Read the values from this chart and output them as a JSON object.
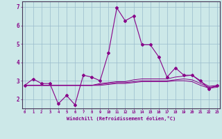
{
  "xlabel": "Windchill (Refroidissement éolien,°C)",
  "background_color": "#cce8e8",
  "grid_color": "#99bbcc",
  "line_color": "#880088",
  "x_hours": [
    0,
    1,
    2,
    3,
    4,
    5,
    6,
    7,
    8,
    9,
    10,
    11,
    12,
    13,
    14,
    15,
    16,
    17,
    18,
    19,
    20,
    21,
    22,
    23
  ],
  "line1_y": [
    2.75,
    3.1,
    2.85,
    2.85,
    1.75,
    2.2,
    1.7,
    3.3,
    3.2,
    3.0,
    4.5,
    6.95,
    6.25,
    6.5,
    4.95,
    4.95,
    4.3,
    3.2,
    3.7,
    3.3,
    3.3,
    3.0,
    2.55,
    2.75
  ],
  "line2_y": [
    2.75,
    2.75,
    2.75,
    2.75,
    2.75,
    2.75,
    2.75,
    2.75,
    2.75,
    2.85,
    2.9,
    2.95,
    2.95,
    3.05,
    3.1,
    3.1,
    3.1,
    3.1,
    3.2,
    3.25,
    3.3,
    2.95,
    2.7,
    2.75
  ],
  "line3_y": [
    2.75,
    2.75,
    2.75,
    2.75,
    2.75,
    2.75,
    2.75,
    2.75,
    2.75,
    2.8,
    2.85,
    2.9,
    2.9,
    2.95,
    3.0,
    3.0,
    3.0,
    3.0,
    3.05,
    3.1,
    3.05,
    2.85,
    2.65,
    2.7
  ],
  "line4_y": [
    2.75,
    2.75,
    2.75,
    2.75,
    2.75,
    2.75,
    2.75,
    2.75,
    2.75,
    2.75,
    2.8,
    2.85,
    2.85,
    2.9,
    2.95,
    2.95,
    2.95,
    2.95,
    3.0,
    3.0,
    2.95,
    2.75,
    2.6,
    2.65
  ],
  "ylim": [
    1.5,
    7.3
  ],
  "yticks": [
    2,
    3,
    4,
    5,
    6,
    7
  ],
  "xlim": [
    -0.3,
    23.3
  ]
}
